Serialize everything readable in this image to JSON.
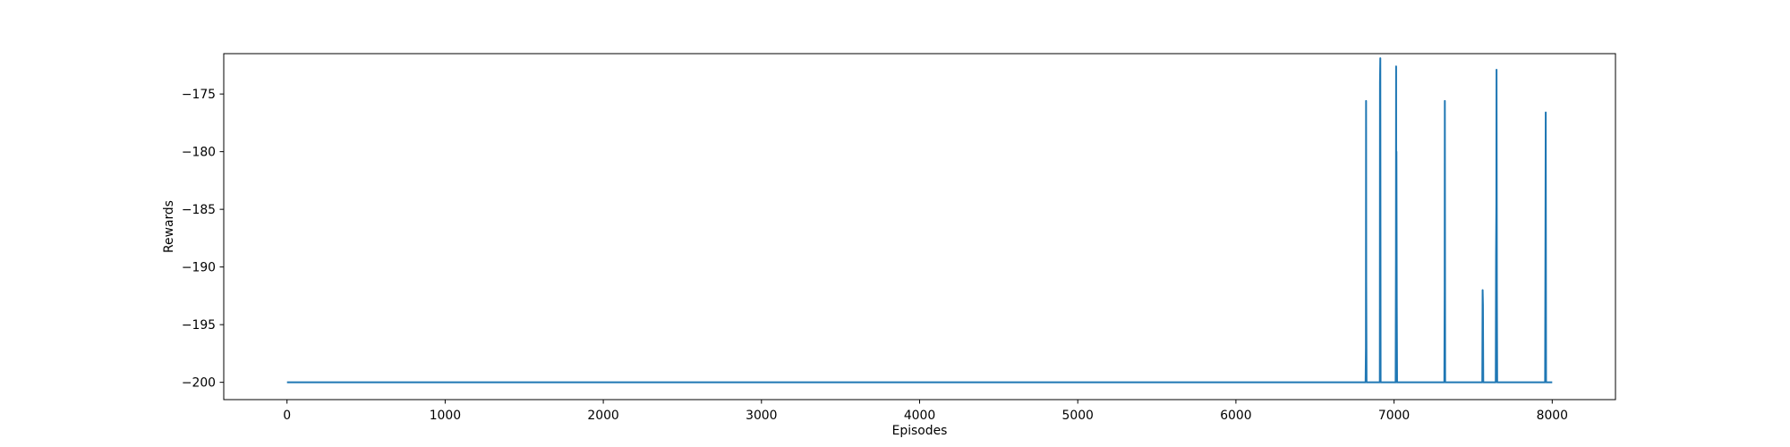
{
  "chart_data": {
    "type": "line",
    "title": "",
    "xlabel": "Episodes",
    "ylabel": "Rewards",
    "xlim": [
      -400,
      8400
    ],
    "ylim": [
      -201.5,
      -171.5
    ],
    "xticks": [
      0,
      1000,
      2000,
      3000,
      4000,
      5000,
      6000,
      7000,
      8000
    ],
    "yticks": [
      -200,
      -195,
      -190,
      -185,
      -180,
      -175
    ],
    "grid": false,
    "legend": "none",
    "series": [
      {
        "color": "#1f77b4",
        "x": [
          0,
          6820,
          6822,
          6823,
          6824,
          6826,
          6828,
          6910,
          6911,
          6913,
          6915,
          6917,
          7010,
          7012,
          7013,
          7014,
          7015,
          7017,
          7019,
          7318,
          7320,
          7321,
          7323,
          7558,
          7560,
          7562,
          7564,
          7643,
          7645,
          7647,
          7648,
          7650,
          7652,
          7955,
          7957,
          7959,
          7961,
          8000
        ],
        "y": [
          -200,
          -200,
          -197,
          -175.6,
          -191.3,
          -200,
          -200,
          -200,
          -174,
          -171.9,
          -200,
          -200,
          -200,
          -189.3,
          -172.6,
          -200,
          -180,
          -193,
          -200,
          -200,
          -192,
          -175.6,
          -200,
          -200,
          -192,
          -193.3,
          -200,
          -200,
          -189,
          -184.5,
          -172.9,
          -192,
          -200,
          -200,
          -189,
          -176.6,
          -200,
          -200
        ]
      }
    ]
  }
}
